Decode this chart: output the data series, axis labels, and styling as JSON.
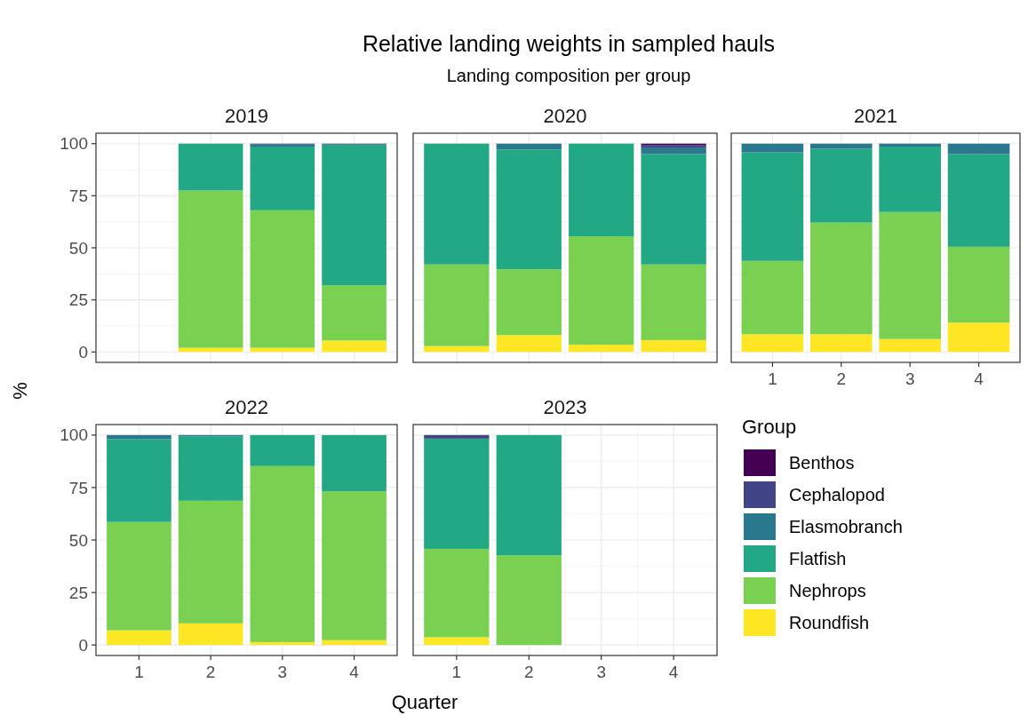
{
  "chart_data": [
    {
      "type": "bar",
      "title": "2019",
      "annotations": [
        "Relative landing weights in sampled hauls",
        "Landing composition per group"
      ],
      "ylabel": "%",
      "stacked": true,
      "categories": [
        "1",
        "2",
        "3",
        "4"
      ],
      "ylim": [
        -5,
        105
      ],
      "yticks": [
        0,
        25,
        50,
        75,
        100
      ],
      "grid": true,
      "legend": false,
      "tick_labels": "y",
      "series": [
        {
          "color": "#fde725",
          "values": [
            null,
            2,
            2,
            5.5
          ]
        },
        {
          "color": "#7ad151",
          "values": [
            null,
            75.5,
            66,
            26.5
          ]
        },
        {
          "color": "#22a884",
          "values": [
            null,
            22.5,
            30.6,
            67.6
          ]
        },
        {
          "color": "#2a788e",
          "values": [
            null,
            0,
            1,
            0
          ]
        },
        {
          "color": "#414487",
          "values": [
            null,
            0,
            0.4,
            0.4
          ]
        },
        {
          "color": "#440154",
          "values": [
            null,
            0,
            0,
            0
          ]
        }
      ]
    },
    {
      "type": "bar",
      "title": "2020",
      "stacked": true,
      "categories": [
        "1",
        "2",
        "3",
        "4"
      ],
      "ylim": [
        -5,
        105
      ],
      "yticks": [
        0,
        25,
        50,
        75,
        100
      ],
      "grid": true,
      "legend": false,
      "tick_labels": false,
      "series": [
        {
          "color": "#fde725",
          "values": [
            2.8,
            8.1,
            3.5,
            5.7
          ]
        },
        {
          "color": "#7ad151",
          "values": [
            39.2,
            31.6,
            52,
            36.3
          ]
        },
        {
          "color": "#22a884",
          "values": [
            58,
            57.5,
            44.5,
            53
          ]
        },
        {
          "color": "#2a788e",
          "values": [
            0,
            2.8,
            0,
            3.2
          ]
        },
        {
          "color": "#414487",
          "values": [
            0,
            0,
            0,
            1
          ]
        },
        {
          "color": "#440154",
          "values": [
            0,
            0,
            0,
            0.8
          ]
        }
      ]
    },
    {
      "type": "bar",
      "title": "2021",
      "stacked": true,
      "categories": [
        "1",
        "2",
        "3",
        "4"
      ],
      "ylim": [
        -5,
        105
      ],
      "yticks": [
        0,
        25,
        50,
        75,
        100
      ],
      "grid": true,
      "legend": false,
      "tick_labels": "x",
      "series": [
        {
          "color": "#fde725",
          "values": [
            8.5,
            8.5,
            6.2,
            14.1
          ]
        },
        {
          "color": "#7ad151",
          "values": [
            35.2,
            53.6,
            61,
            36.4
          ]
        },
        {
          "color": "#22a884",
          "values": [
            52.1,
            35.5,
            31.4,
            44.5
          ]
        },
        {
          "color": "#2a788e",
          "values": [
            4.2,
            2.4,
            1.4,
            5
          ]
        },
        {
          "color": "#414487",
          "values": [
            0,
            0,
            0,
            0
          ]
        },
        {
          "color": "#440154",
          "values": [
            0,
            0,
            0,
            0
          ]
        }
      ]
    },
    {
      "type": "bar",
      "title": "2022",
      "stacked": true,
      "categories": [
        "1",
        "2",
        "3",
        "4"
      ],
      "ylim": [
        -5,
        105
      ],
      "yticks": [
        0,
        25,
        50,
        75,
        100
      ],
      "grid": true,
      "legend": false,
      "series": [
        {
          "color": "#fde725",
          "values": [
            7,
            10.3,
            1.4,
            2.3
          ]
        },
        {
          "color": "#7ad151",
          "values": [
            51.6,
            58.4,
            83.8,
            70.9
          ]
        },
        {
          "color": "#22a884",
          "values": [
            39.4,
            30.7,
            14.8,
            26.8
          ]
        },
        {
          "color": "#2a788e",
          "values": [
            2,
            0.6,
            0,
            0
          ]
        },
        {
          "color": "#414487",
          "values": [
            0,
            0,
            0,
            0
          ]
        },
        {
          "color": "#440154",
          "values": [
            0,
            0,
            0,
            0
          ]
        }
      ]
    },
    {
      "type": "bar",
      "title": "2023",
      "xlabel": "Quarter",
      "legend_title": "Group",
      "stacked": true,
      "categories": [
        "1",
        "2",
        "3",
        "4"
      ],
      "ylim": [
        -5,
        105
      ],
      "yticks": [
        0,
        25,
        50,
        75,
        100
      ],
      "grid": true,
      "legend": "right",
      "tick_labels": "x",
      "series": [
        {
          "name": "Roundfish",
          "color": "#fde725",
          "values": [
            3.7,
            0,
            null,
            null
          ]
        },
        {
          "name": "Nephrops",
          "color": "#7ad151",
          "values": [
            42.1,
            42.7,
            null,
            null
          ]
        },
        {
          "name": "Flatfish",
          "color": "#22a884",
          "values": [
            52.5,
            57.3,
            null,
            null
          ]
        },
        {
          "name": "Elasmobranch",
          "color": "#2a788e",
          "values": [
            0,
            0,
            null,
            null
          ]
        },
        {
          "name": "Cephalopod",
          "color": "#414487",
          "values": [
            1.7,
            0,
            null,
            null
          ]
        },
        {
          "name": "Benthos",
          "color": "#440154",
          "values": [
            0,
            0,
            null,
            null
          ]
        }
      ]
    }
  ]
}
